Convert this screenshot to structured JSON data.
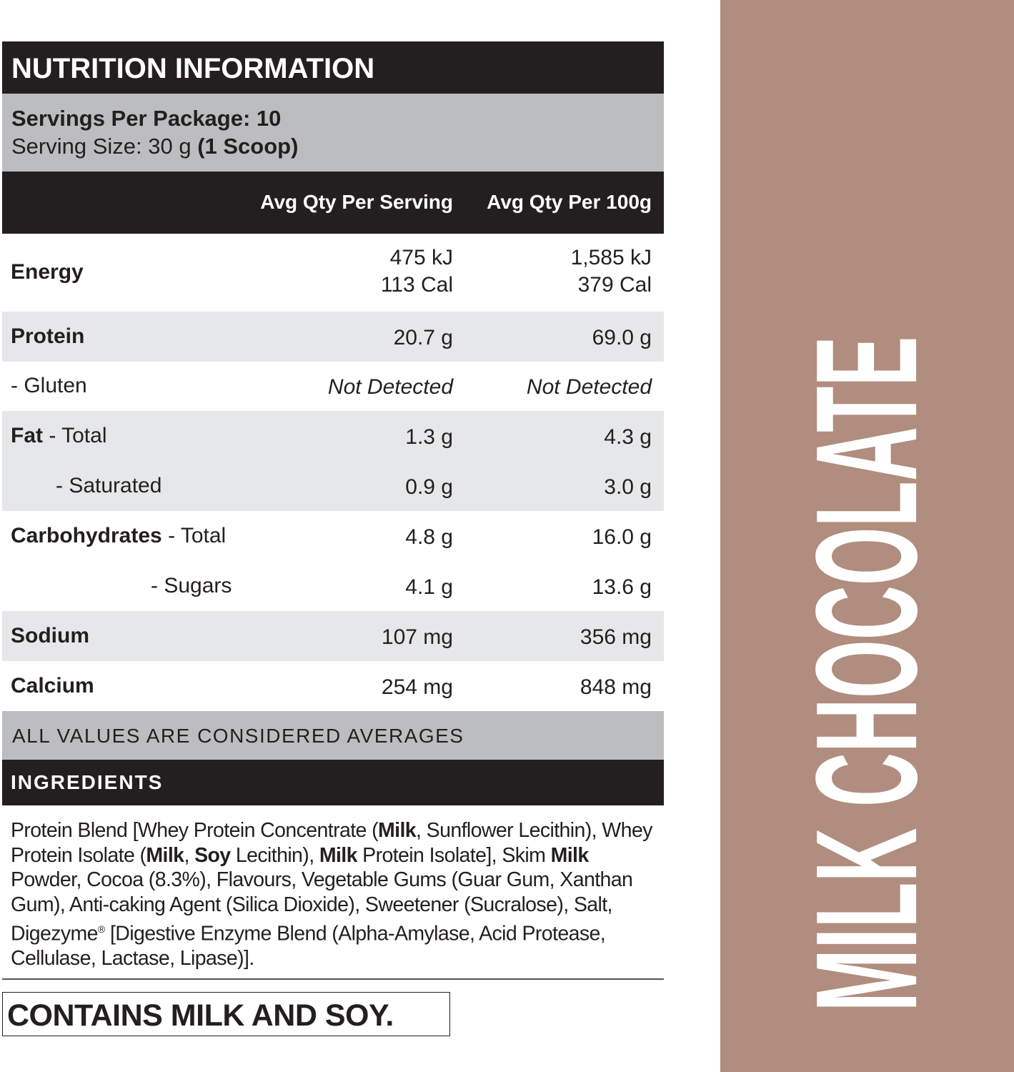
{
  "title": "NUTRITION INFORMATION",
  "servings_per_package": "Servings Per Package: 10",
  "serving_size_label": "Serving Size: 30 g ",
  "serving_size_bold": "(1 Scoop)",
  "columns": [
    "Avg Qty Per Serving",
    "Avg Qty Per 100g"
  ],
  "rows": [
    {
      "name_bold": "Energy",
      "name": "",
      "v1": "475 kJ\n113 Cal",
      "v2": "1,585 kJ\n379 Cal"
    },
    {
      "name_bold": "Protein",
      "name": "",
      "v1": "20.7 g",
      "v2": "69.0 g"
    },
    {
      "name_bold": "",
      "name": "- Gluten",
      "v1": "Not Detected",
      "v2": "Not Detected"
    },
    {
      "name_bold": "Fat",
      "name": " - Total",
      "v1": "1.3 g",
      "v2": "4.3 g"
    },
    {
      "name_bold": "",
      "name": "- Saturated",
      "v1": "0.9 g",
      "v2": "3.0 g"
    },
    {
      "name_bold": "Carbohydrates",
      "name": " - Total",
      "v1": "4.8 g",
      "v2": "16.0 g"
    },
    {
      "name_bold": "",
      "name": "- Sugars",
      "v1": "4.1 g",
      "v2": "13.6 g"
    },
    {
      "name_bold": "Sodium",
      "name": "",
      "v1": "107 mg",
      "v2": "356 mg"
    },
    {
      "name_bold": "Calcium",
      "name": "",
      "v1": "254 mg",
      "v2": "848 mg"
    }
  ],
  "footer": "ALL VALUES ARE CONSIDERED AVERAGES",
  "ingredients_title": "INGREDIENTS",
  "ingredients": [
    {
      "t": "Protein Blend [Whey Protein Concentrate ("
    },
    {
      "t": "Milk",
      "b": true
    },
    {
      "t": ", Sunflower Lecithin), Whey Protein Isolate ("
    },
    {
      "t": "Milk",
      "b": true
    },
    {
      "t": ", "
    },
    {
      "t": "Soy",
      "b": true
    },
    {
      "t": " Lecithin), "
    },
    {
      "t": "Milk",
      "b": true
    },
    {
      "t": " Protein Isolate], Skim "
    },
    {
      "t": "Milk",
      "b": true
    },
    {
      "t": " Powder, Cocoa (8.3%), Flavours, Vegetable Gums (Guar Gum, Xanthan Gum), Anti-caking Agent (Silica Dioxide), Sweetener (Sucralose), Salt, Digezyme"
    },
    {
      "t": "®",
      "sup": true
    },
    {
      "t": "  [Digestive Enzyme Blend (Alpha-Amylase, Acid Protease, Cellulase, Lactase, Lipase)]."
    }
  ],
  "allergen": "CONTAINS MILK AND SOY.",
  "flavour": "MILK CHOCOLATE",
  "colors": {
    "dark": "#231f20",
    "gray_band": "#bcbdbf",
    "light_row": "#e6e7e8",
    "flavour_panel": "#b08d7e"
  }
}
